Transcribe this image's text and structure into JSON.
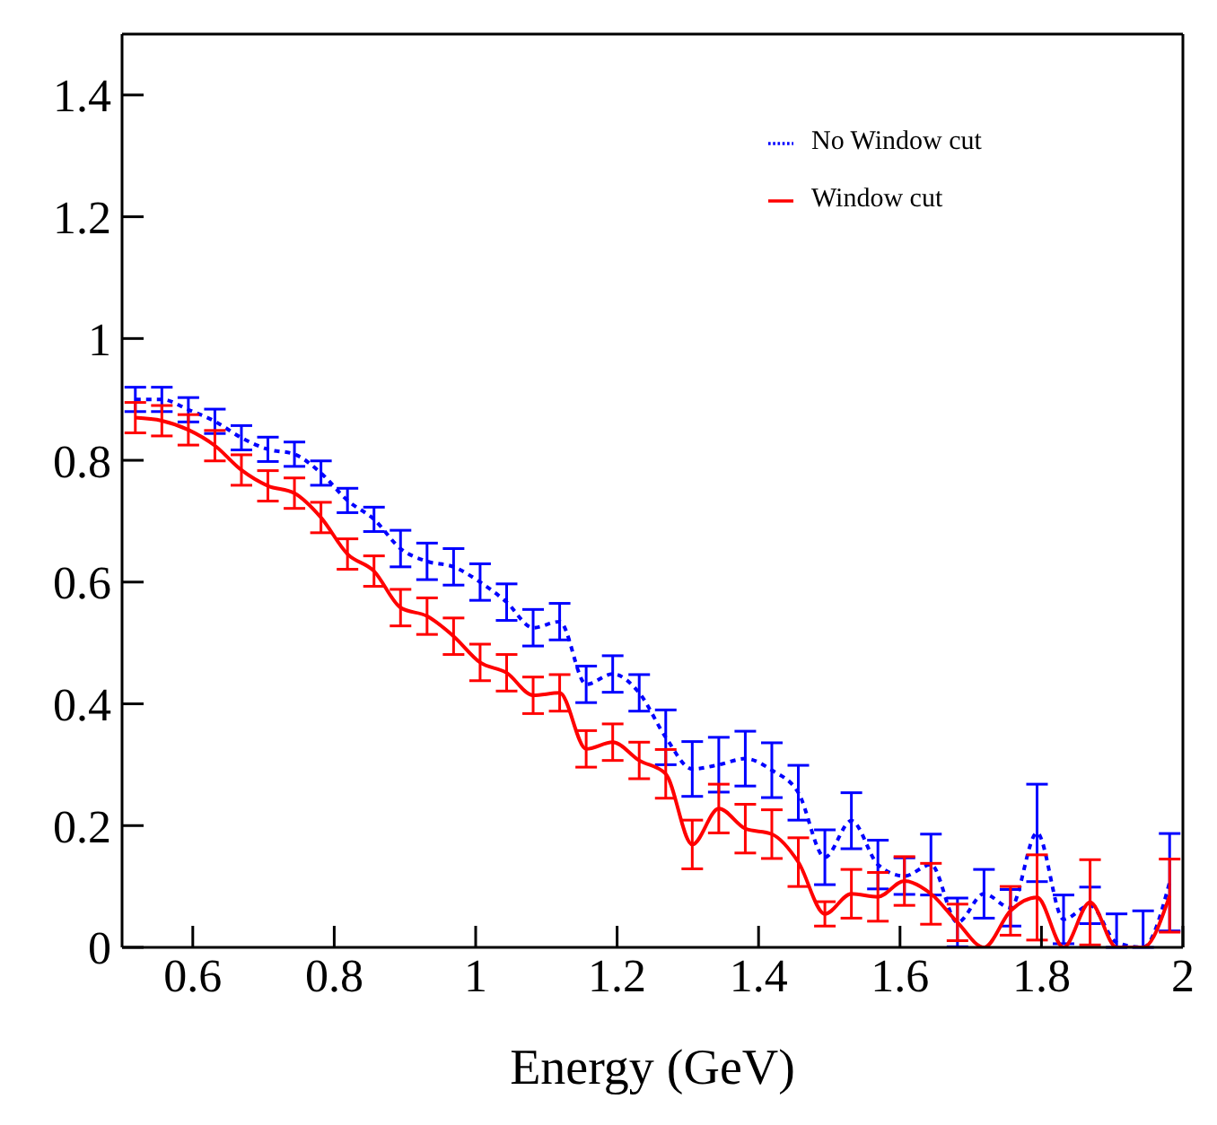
{
  "chart_data": {
    "type": "line",
    "xlabel": "Energy (GeV)",
    "x": [
      0.51875,
      0.55625,
      0.59375,
      0.63125,
      0.66875,
      0.70625,
      0.74375,
      0.78125,
      0.81875,
      0.85625,
      0.89375,
      0.93125,
      0.96875,
      1.00625,
      1.04375,
      1.08125,
      1.11875,
      1.15625,
      1.19375,
      1.23125,
      1.26875,
      1.30625,
      1.34375,
      1.38125,
      1.41875,
      1.45625,
      1.49375,
      1.53125,
      1.56875,
      1.60625,
      1.64375,
      1.68125,
      1.71875,
      1.75625,
      1.79375,
      1.83125,
      1.86875,
      1.90625,
      1.94375,
      1.98125
    ],
    "series": [
      {
        "name": "No Window cut",
        "color": "#0000ff",
        "line_style": "dotted",
        "values": [
          0.9,
          0.9,
          0.883,
          0.864,
          0.837,
          0.818,
          0.81,
          0.779,
          0.734,
          0.703,
          0.655,
          0.634,
          0.625,
          0.6,
          0.567,
          0.525,
          0.535,
          0.432,
          0.449,
          0.418,
          0.345,
          0.293,
          0.3,
          0.31,
          0.291,
          0.254,
          0.148,
          0.208,
          0.136,
          0.117,
          0.136,
          0.041,
          0.088,
          0.065,
          0.188,
          0.046,
          0.069,
          0.008,
          0,
          0.107
        ],
        "errors": [
          0.02,
          0.02,
          0.02,
          0.02,
          0.02,
          0.02,
          0.02,
          0.02,
          0.02,
          0.02,
          0.03,
          0.03,
          0.03,
          0.03,
          0.03,
          0.03,
          0.03,
          0.03,
          0.03,
          0.03,
          0.045,
          0.045,
          0.045,
          0.045,
          0.045,
          0.045,
          0.045,
          0.046,
          0.04,
          0.03,
          0.05,
          0.04,
          0.04,
          0.03,
          0.08,
          0.04,
          0.03,
          [
            0,
            0.055
          ],
          [
            0,
            0.06
          ],
          0.08
        ]
      },
      {
        "name": "Window cut",
        "color": "#ff0000",
        "line_style": "solid",
        "values": [
          0.87,
          0.865,
          0.85,
          0.824,
          0.784,
          0.758,
          0.746,
          0.706,
          0.646,
          0.618,
          0.558,
          0.544,
          0.511,
          0.468,
          0.451,
          0.414,
          0.418,
          0.326,
          0.337,
          0.307,
          0.285,
          0.169,
          0.228,
          0.195,
          0.186,
          0.14,
          0.055,
          0.088,
          0.083,
          0.109,
          0.088,
          0.041,
          0,
          0.06,
          0.082,
          0,
          0.074,
          0,
          0,
          0.085
        ],
        "errors": [
          0.025,
          0.025,
          0.025,
          0.025,
          0.025,
          0.025,
          0.025,
          0.025,
          0.025,
          0.025,
          0.03,
          0.03,
          0.03,
          0.03,
          0.03,
          0.03,
          0.03,
          0.03,
          0.03,
          0.03,
          0.04,
          0.04,
          0.04,
          0.04,
          0.04,
          0.04,
          0.02,
          0.04,
          0.04,
          0.04,
          0.05,
          0.03,
          null,
          0.04,
          0.07,
          null,
          0.07,
          null,
          null,
          0.06
        ]
      }
    ],
    "xlim": [
      0.5,
      2
    ],
    "xticks": [
      0.6,
      0.8,
      1,
      1.2,
      1.4,
      1.6,
      1.8,
      2
    ],
    "ylim": [
      0,
      1.5
    ],
    "yticks": [
      0,
      0.2,
      0.4,
      0.6,
      0.8,
      1,
      1.2,
      1.4
    ],
    "grid": false,
    "legend": "top right",
    "marker": "none"
  }
}
